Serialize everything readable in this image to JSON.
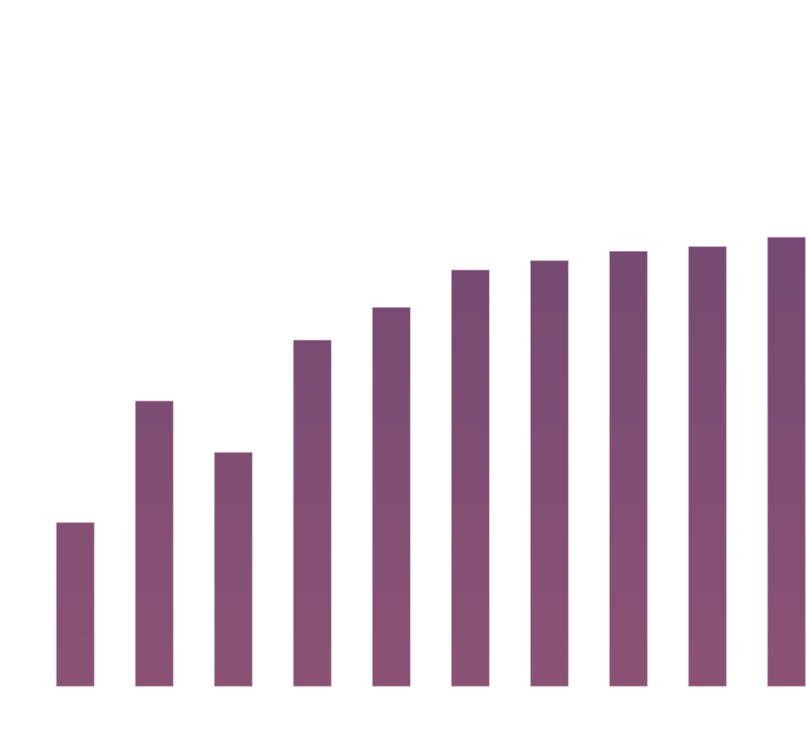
{
  "chart_data": {
    "type": "bar",
    "title": "",
    "xlabel": "",
    "ylabel": "",
    "grid": false,
    "legend": "none",
    "categories": [
      "",
      "",
      "",
      "",
      "",
      "",
      "",
      "",
      "",
      ""
    ],
    "values": [
      35,
      61,
      50,
      74,
      81,
      89,
      91,
      93,
      94,
      96
    ],
    "ylim": [
      0,
      100
    ],
    "colors": {
      "bar_top": "#764a72",
      "bar_bottom": "#8b5274",
      "background": "#ffffff"
    }
  }
}
